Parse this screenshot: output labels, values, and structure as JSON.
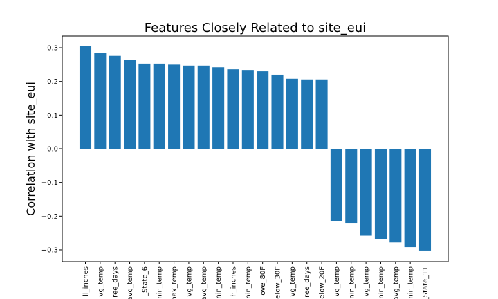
{
  "chart_data": {
    "type": "bar",
    "title": "Features Closely Related to site_eui",
    "xlabel": "",
    "ylabel": "Correlation with site_eui",
    "ylim": [
      -0.335,
      0.335
    ],
    "yticks": [
      -0.3,
      -0.2,
      -0.1,
      0.0,
      0.1,
      0.2,
      0.3
    ],
    "ytick_labels": [
      "−0.3",
      "−0.2",
      "−0.1",
      "0.0",
      "0.1",
      "0.2",
      "0.3"
    ],
    "bar_color": "#1f77b4",
    "categories": [
      "ll_inches",
      "vg_temp",
      "ree_days",
      "avg_temp",
      "_State_6",
      "nin_temp",
      "nax_temp",
      "vg_temp",
      "avg_temp",
      "nin_temp",
      "h_inches",
      "nin_temp",
      "ove_80F",
      "elow_30F",
      "vg_temp",
      "ree_days",
      "elow_20F",
      "vg_temp",
      "nin_temp",
      "vg_temp",
      "nin_temp",
      "avg_temp",
      "nin_temp",
      "_State_11"
    ],
    "values": [
      0.306,
      0.284,
      0.276,
      0.265,
      0.253,
      0.253,
      0.25,
      0.247,
      0.247,
      0.242,
      0.236,
      0.234,
      0.23,
      0.22,
      0.208,
      0.206,
      0.206,
      -0.214,
      -0.22,
      -0.258,
      -0.268,
      -0.278,
      -0.292,
      -0.302
    ]
  }
}
